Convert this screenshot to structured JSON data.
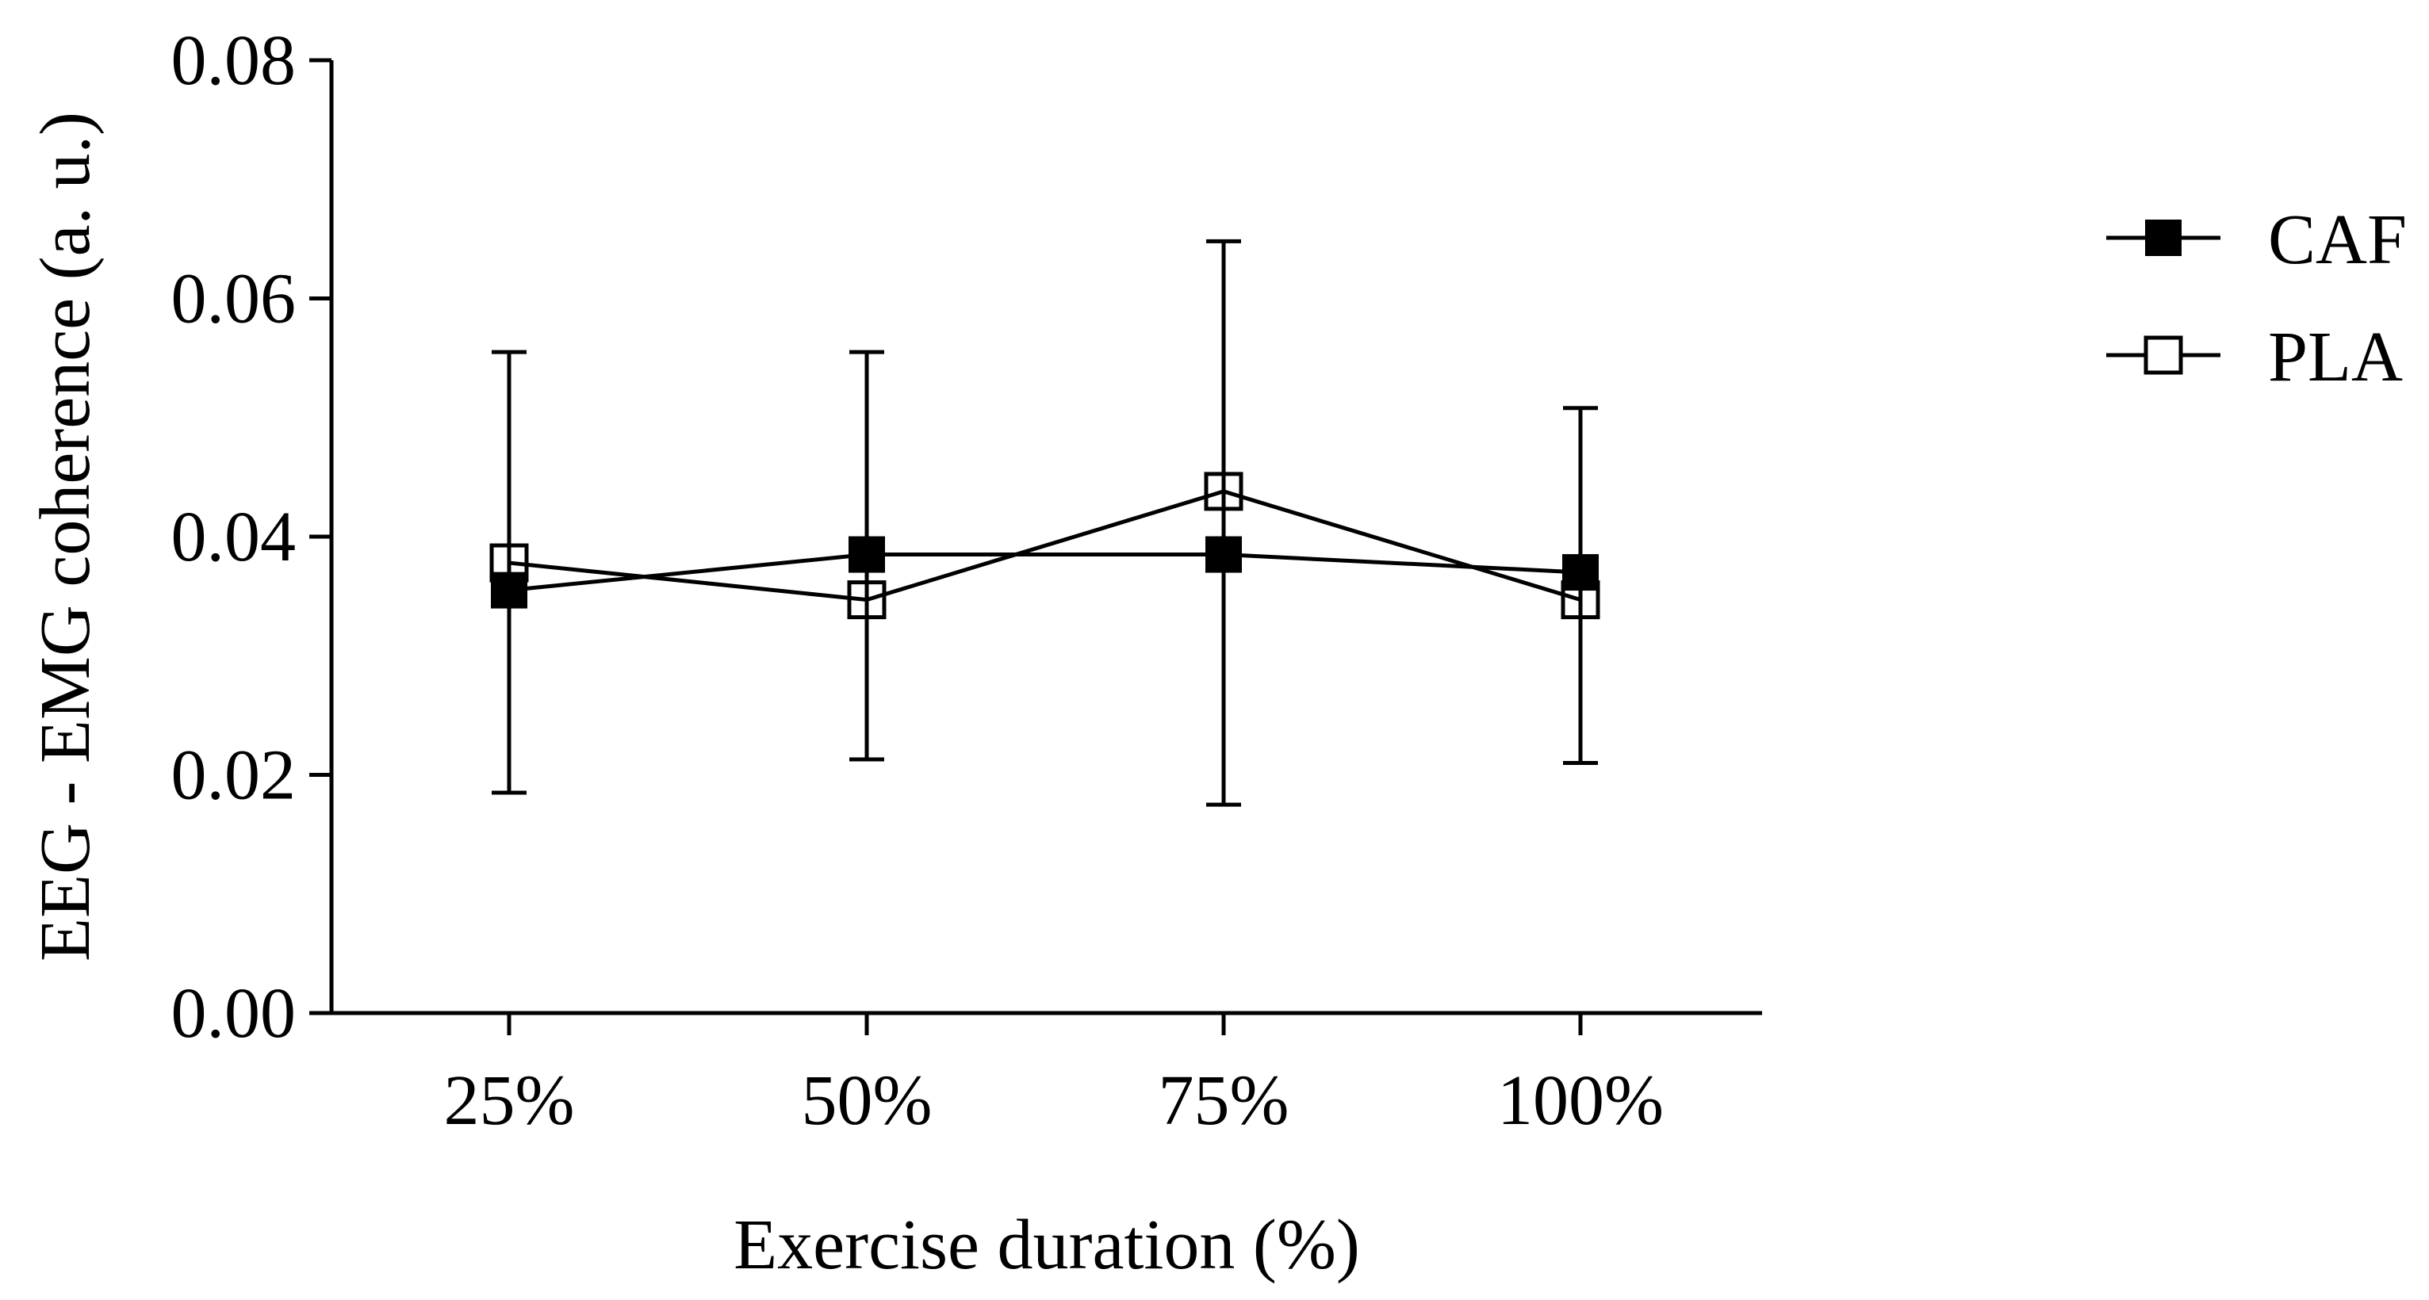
{
  "chart_data": {
    "type": "line",
    "title": "",
    "xlabel": "Exercise duration (%)",
    "ylabel": "EEG - EMG coherence (a. u.)",
    "categories": [
      "25%",
      "50%",
      "75%",
      "100%"
    ],
    "ylim": [
      0,
      0.08
    ],
    "yticks": [
      0.0,
      0.02,
      0.04,
      0.06,
      0.08
    ],
    "ytick_labels": [
      "0.00",
      "0.02",
      "0.04",
      "0.06",
      "0.08"
    ],
    "grid": false,
    "legend_position": "top-right",
    "series": [
      {
        "name": "CAF",
        "marker": "filled-square",
        "color": "#000000",
        "values": [
          0.0355,
          0.0385,
          0.0385,
          0.037
        ],
        "error_upper": [
          0.0555,
          0.0555,
          0.0648,
          0.0508
        ],
        "error_lower": [
          0.0185,
          0.0213,
          0.0175,
          0.021
        ]
      },
      {
        "name": "PLA",
        "marker": "open-square",
        "color": "#000000",
        "values": [
          0.0378,
          0.0347,
          0.0438,
          0.0347
        ]
      }
    ]
  }
}
